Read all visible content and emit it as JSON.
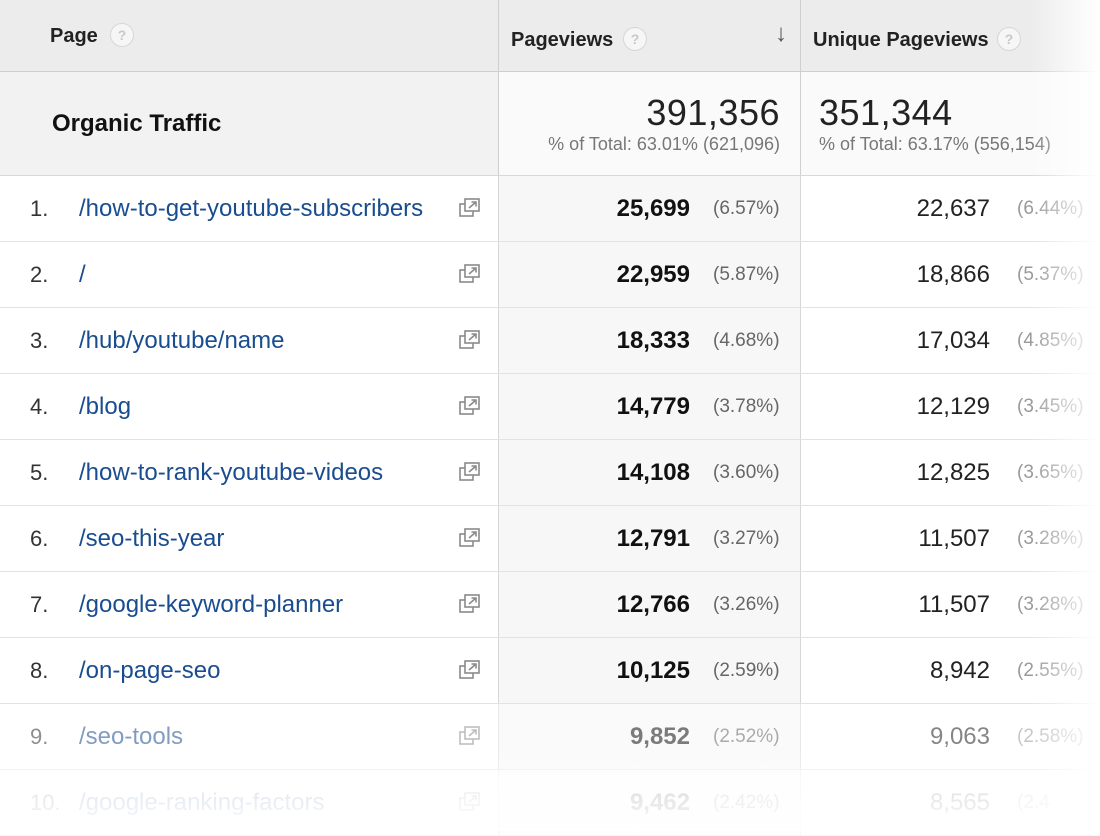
{
  "header": {
    "page_label": "Page",
    "pageviews_label": "Pageviews",
    "unique_label": "Unique Pageviews",
    "help_glyph": "?",
    "sort_glyph": "↓"
  },
  "total": {
    "label": "Organic Traffic",
    "pageviews": "391,356",
    "pageviews_sub": "% of Total: 63.01% (621,096)",
    "unique": "351,344",
    "unique_sub": "% of Total: 63.17% (556,154)"
  },
  "rows": [
    {
      "num": "1.",
      "page": "/how-to-get-youtube-subscribers",
      "pageviews": "25,699",
      "pv_pct": "(6.57%)",
      "unique": "22,637",
      "uv_pct": "(6.44%)"
    },
    {
      "num": "2.",
      "page": "/",
      "pageviews": "22,959",
      "pv_pct": "(5.87%)",
      "unique": "18,866",
      "uv_pct": "(5.37%)"
    },
    {
      "num": "3.",
      "page": "/hub/youtube/name",
      "pageviews": "18,333",
      "pv_pct": "(4.68%)",
      "unique": "17,034",
      "uv_pct": "(4.85%)"
    },
    {
      "num": "4.",
      "page": "/blog",
      "pageviews": "14,779",
      "pv_pct": "(3.78%)",
      "unique": "12,129",
      "uv_pct": "(3.45%)"
    },
    {
      "num": "5.",
      "page": "/how-to-rank-youtube-videos",
      "pageviews": "14,108",
      "pv_pct": "(3.60%)",
      "unique": "12,825",
      "uv_pct": "(3.65%)"
    },
    {
      "num": "6.",
      "page": "/seo-this-year",
      "pageviews": "12,791",
      "pv_pct": "(3.27%)",
      "unique": "11,507",
      "uv_pct": "(3.28%)"
    },
    {
      "num": "7.",
      "page": "/google-keyword-planner",
      "pageviews": "12,766",
      "pv_pct": "(3.26%)",
      "unique": "11,507",
      "uv_pct": "(3.28%)"
    },
    {
      "num": "8.",
      "page": "/on-page-seo",
      "pageviews": "10,125",
      "pv_pct": "(2.59%)",
      "unique": "8,942",
      "uv_pct": "(2.55%)"
    },
    {
      "num": "9.",
      "page": "/seo-tools",
      "pageviews": "9,852",
      "pv_pct": "(2.52%)",
      "unique": "9,063",
      "uv_pct": "(2.58%)"
    },
    {
      "num": "10.",
      "page": "/google-ranking-factors",
      "pageviews": "9,462",
      "pv_pct": "(2.42%)",
      "unique": "8,565",
      "uv_pct": "(2.4"
    }
  ],
  "icons": {
    "help": "help-icon",
    "sort": "sort-descending-icon",
    "external": "open-in-new-window-icon"
  },
  "colors": {
    "link": "#1a4d8f",
    "header_bg": "#ececec"
  }
}
